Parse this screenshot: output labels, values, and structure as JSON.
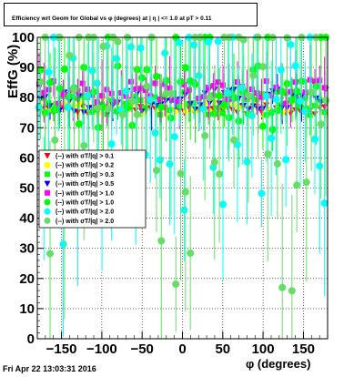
{
  "title": "Efficiency wrt Geom for Global vs φ (degrees) at | η | <= 1.0 at pT > 0.11",
  "footer_timestamp": "Fri Apr 22 13:03:31 2016",
  "chart_data": {
    "type": "scatter",
    "title": "Efficiency wrt Geom for Global vs φ (degrees) at | η | <= 1.0 at pT > 0.11",
    "xlabel": "φ (degrees)",
    "ylabel": "EffG (%)",
    "xlim": [
      -180,
      180
    ],
    "ylim": [
      0,
      100
    ],
    "xticks": [
      -150,
      -100,
      -50,
      0,
      50,
      100,
      150
    ],
    "yticks": [
      0,
      10,
      20,
      30,
      40,
      50,
      60,
      70,
      80,
      90,
      100
    ],
    "grid": true,
    "legend_position": "left-middle",
    "series": [
      {
        "name": "(--) with σT/|q| > 0.1",
        "color": "#ff0000",
        "marker": "triangle-down",
        "level": 76,
        "spread": 1.5,
        "bar": 2
      },
      {
        "name": "(--) with σT/|q| > 0.2",
        "color": "#ffff00",
        "marker": "circle",
        "level": 77,
        "spread": 3,
        "bar": 4
      },
      {
        "name": "(--) with σT/|q| > 0.3",
        "color": "#00ff00",
        "marker": "square",
        "level": 78,
        "spread": 4,
        "bar": 5
      },
      {
        "name": "(--) with σT/|q| > 0.5",
        "color": "#0000ff",
        "marker": "triangle-down",
        "level": 79,
        "spread": 4,
        "bar": 6
      },
      {
        "name": "(--) with σT/|q| > 1.0",
        "color": "#ff00ff",
        "marker": "square",
        "level": 82,
        "spread": 4,
        "bar": 8
      },
      {
        "name": "(--) with σT/|q| > 1.0",
        "color": "#00ff00",
        "marker": "circle",
        "level": 80,
        "spread": 12,
        "bar": 14
      },
      {
        "name": "(--) with σT/|q| > 2.0",
        "color": "#00ffff",
        "marker": "circle",
        "level": 78,
        "spread": 22,
        "bar": 22
      },
      {
        "name": "(--) with σT/|q| > 2.0",
        "color": "#66dd66",
        "marker": "circle",
        "level": 80,
        "spread": 30,
        "bar": 28
      }
    ]
  }
}
